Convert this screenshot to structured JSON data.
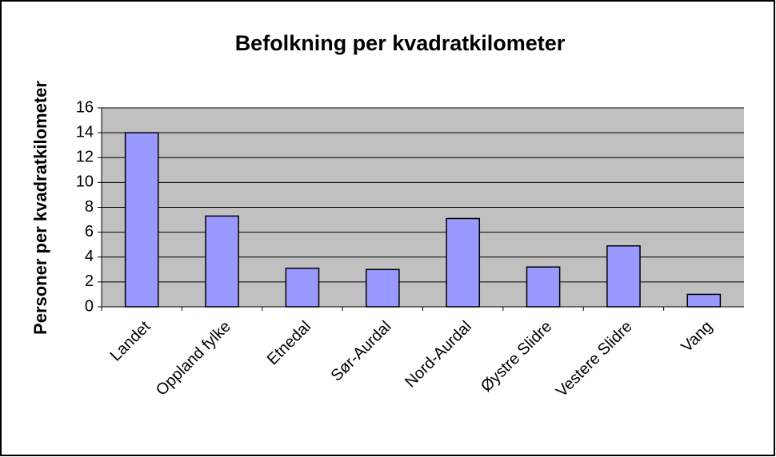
{
  "chart_data": {
    "type": "bar",
    "title": "Befolkning per kvadratkilometer",
    "y_label": "Personer per kvadratkilometer",
    "categories": [
      "Landet",
      "Oppland fylke",
      "Etnedal",
      "Sør-Aurdal",
      "Nord-Aurdal",
      "Øystre Slidre",
      "Vestere Slidre",
      "Vang"
    ],
    "values": [
      14.0,
      7.3,
      3.1,
      3.0,
      7.1,
      3.2,
      4.9,
      1.0
    ],
    "color": "#9999ff",
    "ylim": [
      0,
      16
    ],
    "yticks": [
      0,
      2,
      4,
      6,
      8,
      10,
      12,
      14,
      16
    ],
    "grid": true
  }
}
